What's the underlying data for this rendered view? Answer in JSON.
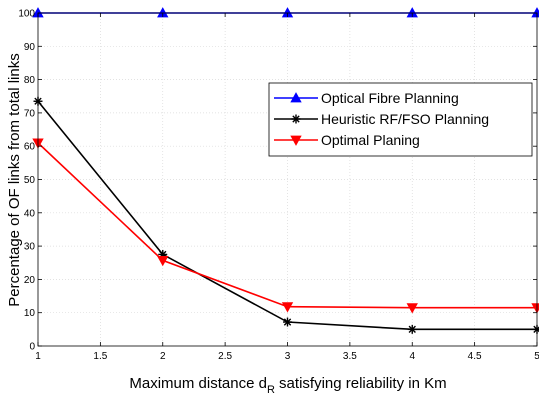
{
  "chart_data": {
    "type": "line",
    "xlabel_main": "Maximum distance d",
    "xlabel_sub": "R",
    "xlabel_rest": " satisfying reliability in Km",
    "ylabel": "Percentage of OF links from total links",
    "xlim": [
      1,
      5
    ],
    "ylim": [
      0,
      100
    ],
    "xticks": [
      1,
      1.5,
      2,
      2.5,
      3,
      3.5,
      4,
      4.5,
      5
    ],
    "yticks": [
      0,
      10,
      20,
      30,
      40,
      50,
      60,
      70,
      80,
      90,
      100
    ],
    "grid": true,
    "legend_position": "top-right",
    "series": [
      {
        "name": "Optical Fibre Planning",
        "color": "#0000ff",
        "marker": "triangle-up",
        "x": [
          1,
          2,
          3,
          4,
          5
        ],
        "y": [
          100,
          100,
          100,
          100,
          100
        ]
      },
      {
        "name": "Heuristic RF/FSO Planning",
        "color": "#000000",
        "marker": "asterisk",
        "x": [
          1,
          2,
          3,
          4,
          5
        ],
        "y": [
          73.5,
          27.5,
          7.2,
          5.0,
          5.0
        ]
      },
      {
        "name": "Optimal Planing",
        "color": "#ff0000",
        "marker": "triangle-down",
        "x": [
          1,
          2,
          3,
          4,
          5
        ],
        "y": [
          61,
          25.7,
          11.8,
          11.5,
          11.5
        ]
      }
    ]
  }
}
